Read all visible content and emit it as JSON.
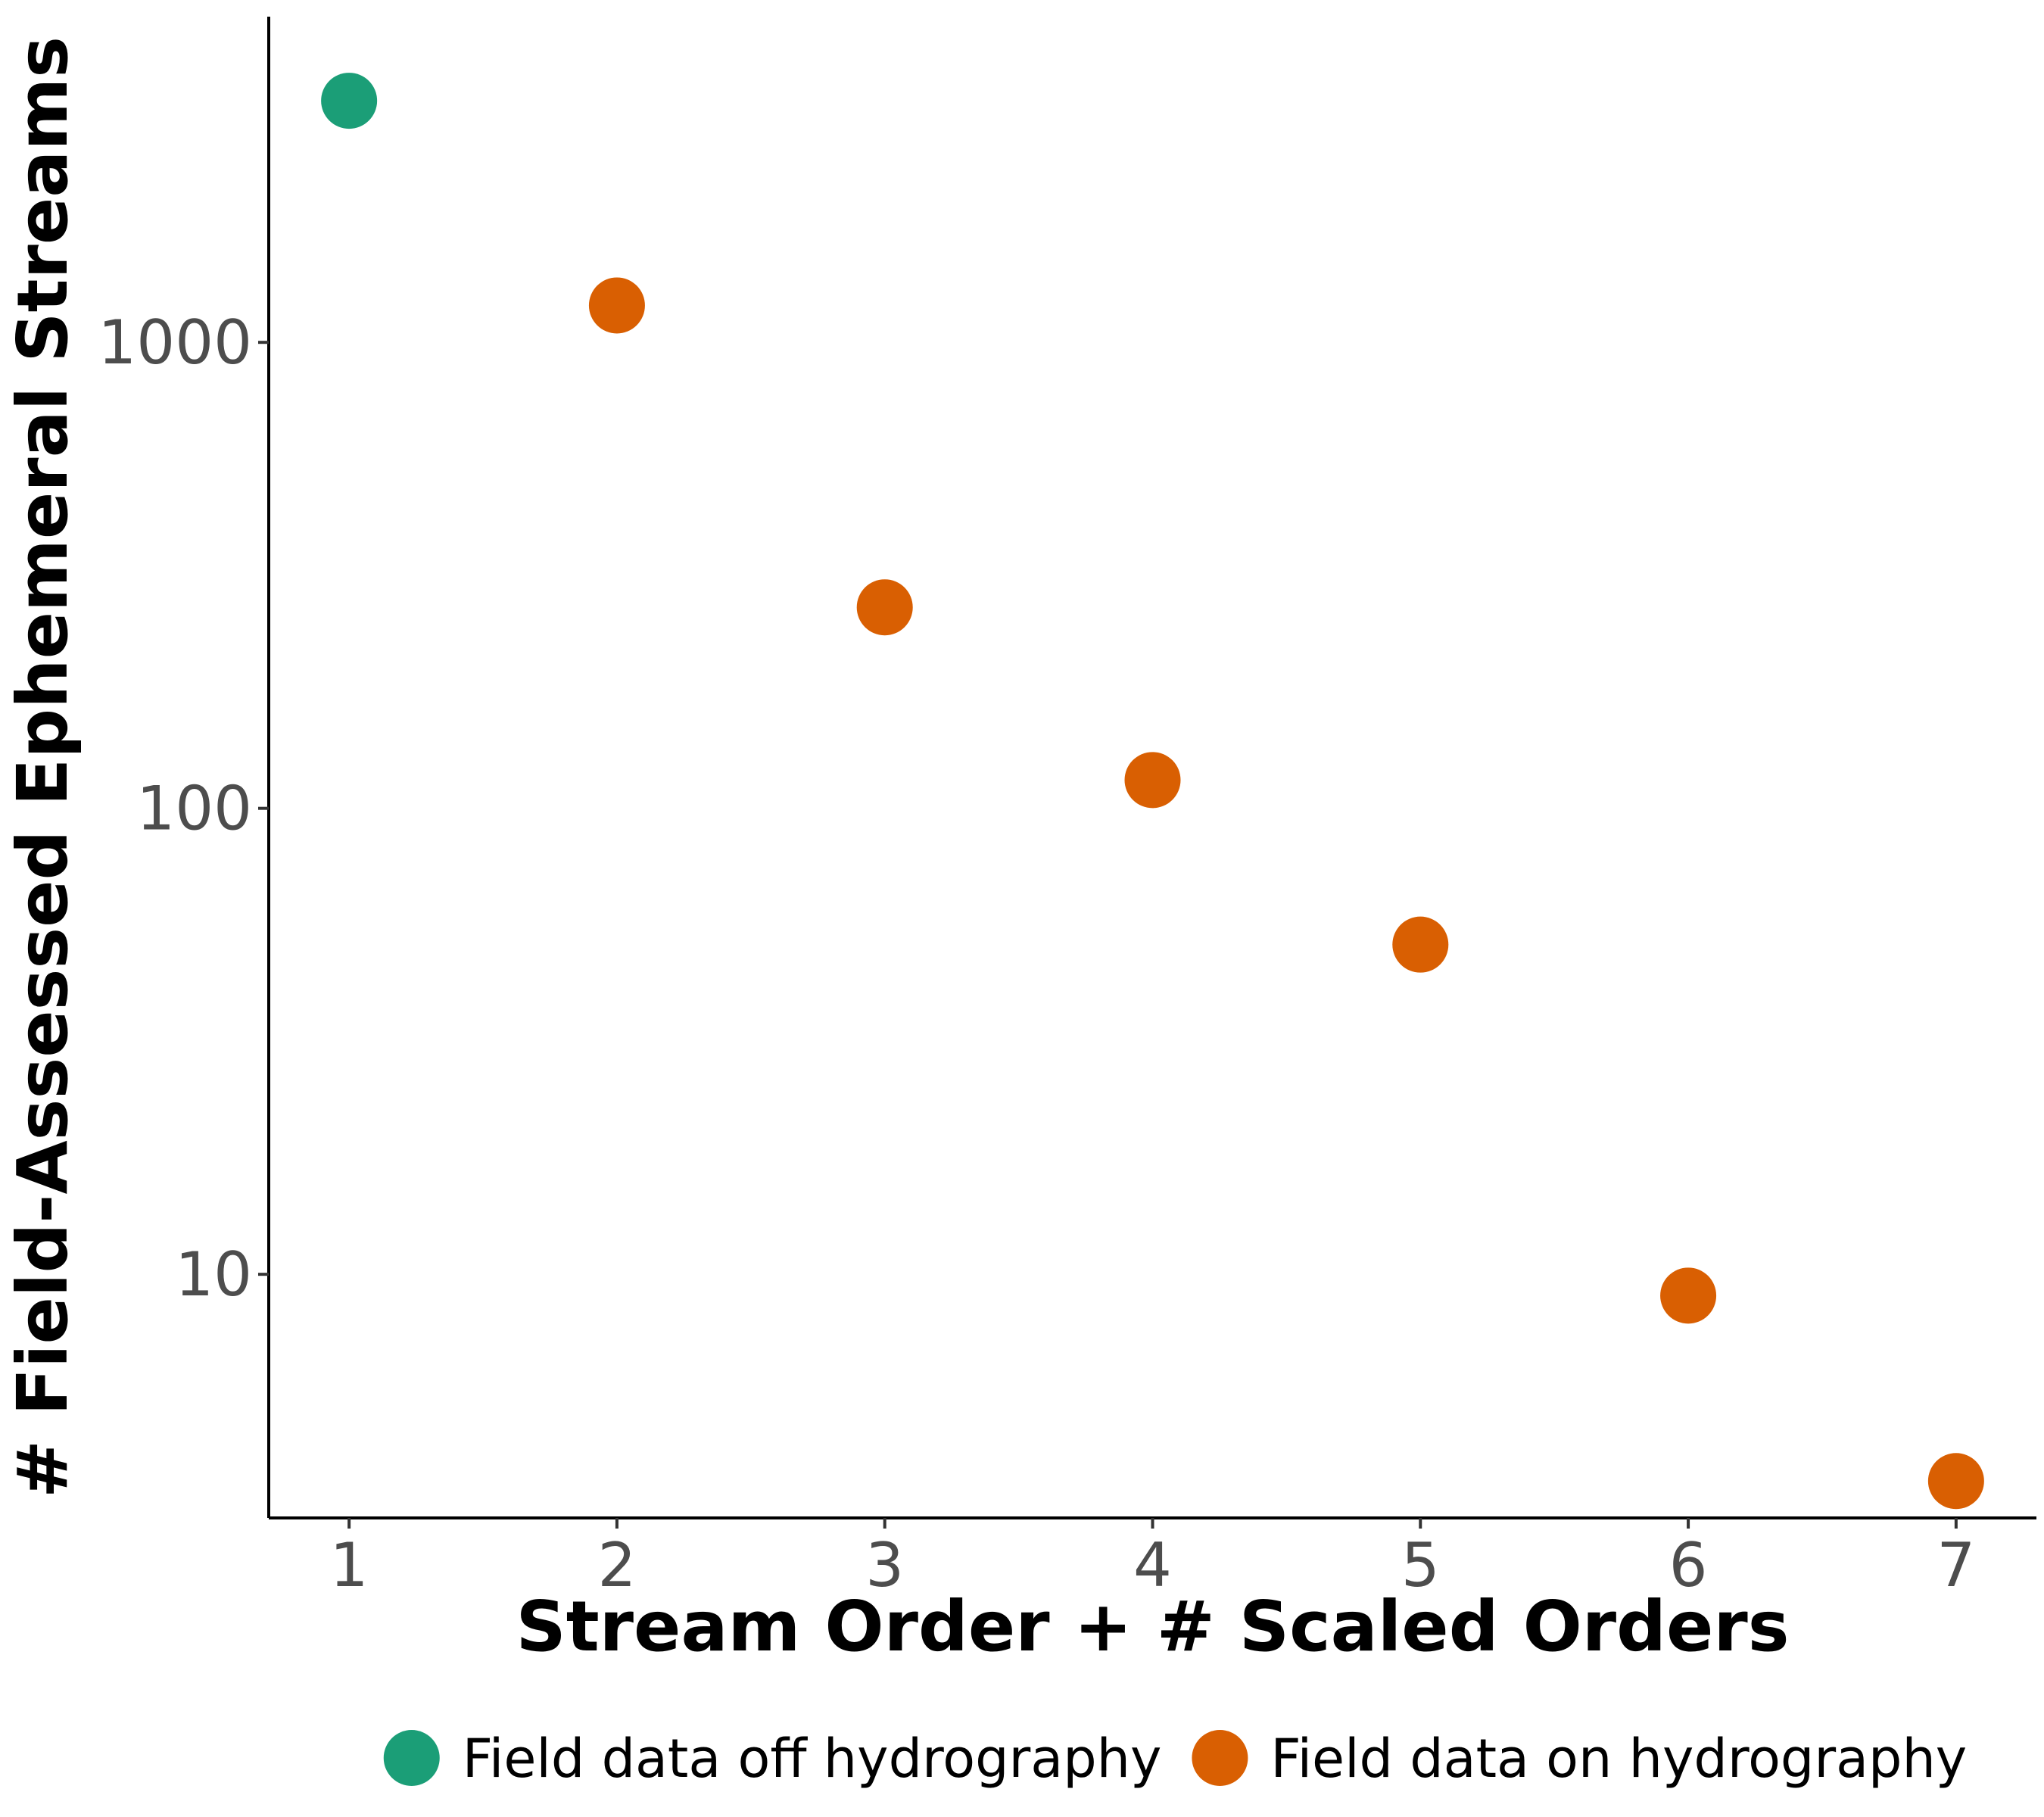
{
  "chart_data": {
    "type": "scatter",
    "title": "",
    "xlabel": "Stream Order + # Scaled Orders",
    "ylabel": "# Field-Assessed Ephemeral Streams",
    "y_scale": "log10",
    "xlim": [
      0.7,
      7.3
    ],
    "ylim": [
      3,
      5000
    ],
    "x_ticks": [
      1,
      2,
      3,
      4,
      5,
      6,
      7
    ],
    "x_tick_labels": [
      "1",
      "2",
      "3",
      "4",
      "5",
      "6",
      "7"
    ],
    "y_ticks": [
      10,
      100,
      1000
    ],
    "y_tick_labels": [
      "10",
      "100",
      "1000"
    ],
    "grid": false,
    "legend_position": "bottom",
    "series": [
      {
        "name": "Field data off hydrography",
        "color": "#1b9e77",
        "points": [
          {
            "x": 1,
            "y": 3300
          }
        ]
      },
      {
        "name": "Field data on hydrography",
        "color": "#d95f02",
        "points": [
          {
            "x": 2,
            "y": 1200
          },
          {
            "x": 3,
            "y": 270
          },
          {
            "x": 4,
            "y": 115
          },
          {
            "x": 5,
            "y": 51
          },
          {
            "x": 6,
            "y": 9
          },
          {
            "x": 7,
            "y": 3.6
          }
        ]
      }
    ]
  }
}
